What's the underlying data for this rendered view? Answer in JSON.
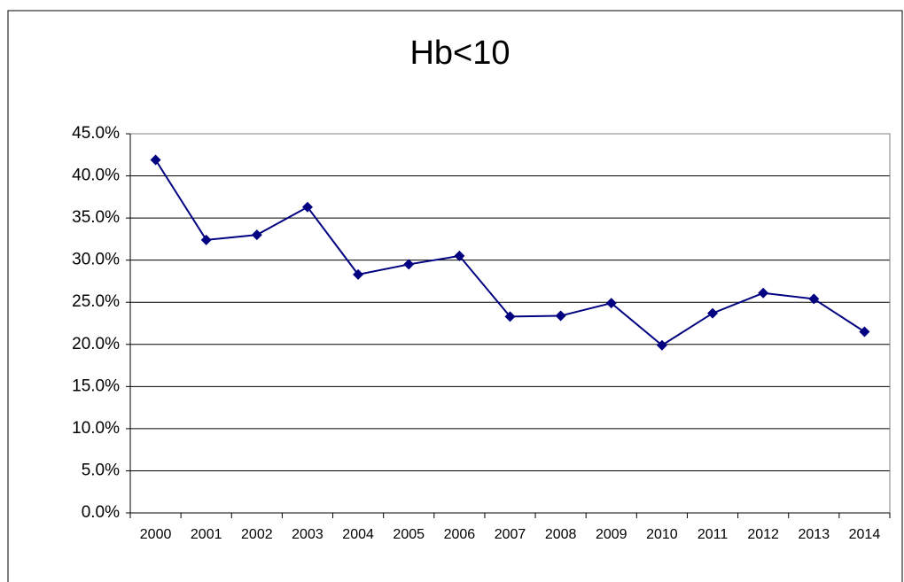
{
  "chart_data": {
    "type": "line",
    "title": "Hb<10",
    "categories": [
      "2000",
      "2001",
      "2002",
      "2003",
      "2004",
      "2005",
      "2006",
      "2007",
      "2008",
      "2009",
      "2010",
      "2011",
      "2012",
      "2013",
      "2014"
    ],
    "series": [
      {
        "name": "Hb<10",
        "color": "#000080",
        "values": [
          41.9,
          32.4,
          33.0,
          36.3,
          28.3,
          29.5,
          30.5,
          23.3,
          23.4,
          24.9,
          19.9,
          23.7,
          26.1,
          25.4,
          21.5
        ]
      }
    ],
    "ylim": [
      0,
      45
    ],
    "yticks": [
      {
        "value": 0,
        "label": "0.0%"
      },
      {
        "value": 5,
        "label": "5.0%"
      },
      {
        "value": 10,
        "label": "10.0%"
      },
      {
        "value": 15,
        "label": "15.0%"
      },
      {
        "value": 20,
        "label": "20.0%"
      },
      {
        "value": 25,
        "label": "25.0%"
      },
      {
        "value": 30,
        "label": "30.0%"
      },
      {
        "value": 35,
        "label": "35.0%"
      },
      {
        "value": 40,
        "label": "40.0%"
      },
      {
        "value": 45,
        "label": "45.0%"
      }
    ],
    "grid": true
  }
}
